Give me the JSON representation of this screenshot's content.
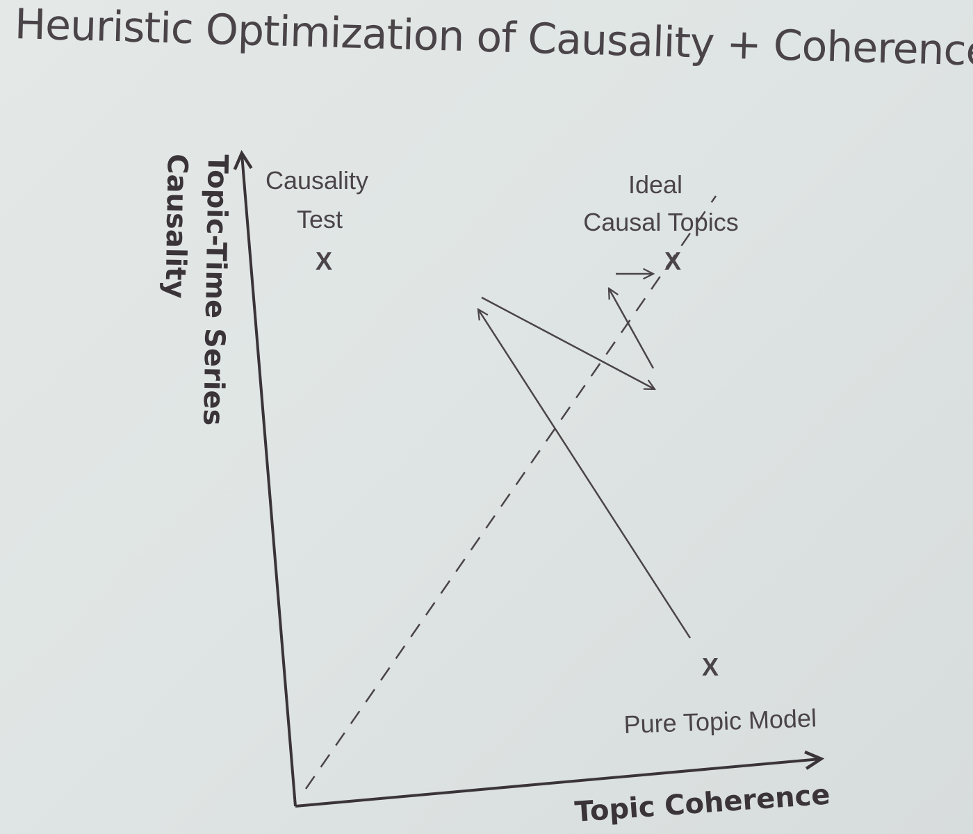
{
  "slide": {
    "title": "Heuristic Optimization of Causality + Coherence"
  },
  "diagram": {
    "y_axis_label": "Topic-Time Series Causality",
    "y_axis_label_line1": "Topic-Time Series",
    "y_axis_label_line2": "Causality",
    "x_axis_label": "Topic Coherence",
    "points": {
      "causality_test": {
        "label_line1": "Causality",
        "label_line2": "Test",
        "marker": "X"
      },
      "ideal_causal_topics": {
        "label_line1": "Ideal",
        "label_line2": "Causal Topics",
        "marker": "X"
      },
      "pure_topic_model": {
        "label": "Pure Topic Model",
        "marker": "X"
      }
    },
    "line_color": "#4a4448"
  }
}
